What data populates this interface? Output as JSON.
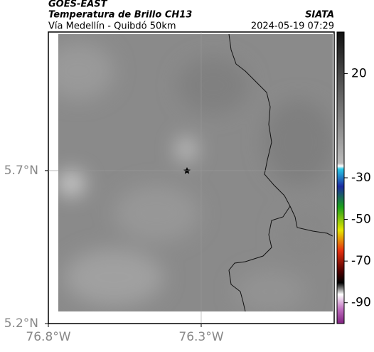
{
  "header": {
    "source": "GOES-EAST",
    "title": "Temperatura de Brillo CH13",
    "subtitle": "Vía Medellín - Quibdó 50km",
    "brand": "SIATA",
    "datetime": "2024-05-19 07:29"
  },
  "map": {
    "xlim": [
      -76.8,
      -75.865
    ],
    "ylim": [
      5.2,
      6.153
    ],
    "xticks": [
      {
        "value": -76.8,
        "label": "76.8°W"
      },
      {
        "value": -76.3,
        "label": "76.3°W"
      }
    ],
    "yticks": [
      {
        "value": 5.2,
        "label": "5.2°N"
      },
      {
        "value": 5.7,
        "label": "5.7°N"
      }
    ],
    "grid": true
  },
  "colorbar": {
    "lim": [
      -100,
      40
    ],
    "ticks": [
      20,
      -30,
      -50,
      -70,
      -90
    ]
  }
}
